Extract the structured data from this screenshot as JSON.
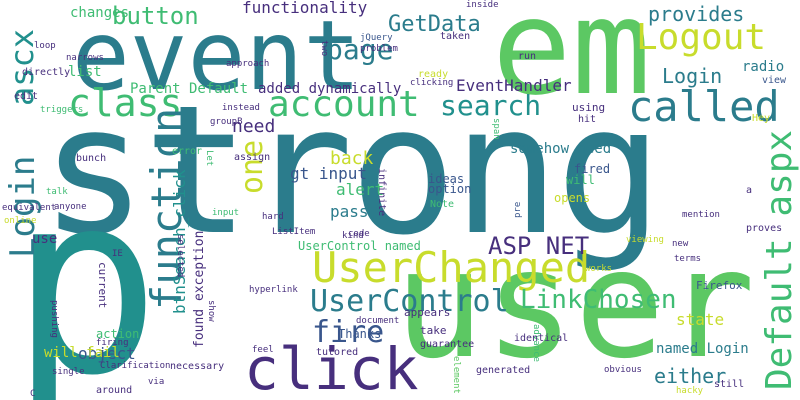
{
  "colors": {
    "background": "#ffffff",
    "teal": "#2b7c8c",
    "green": "#5cc863",
    "lime": "#c8dc2c",
    "navy": "#39568c",
    "purple": "#472f7d",
    "blue": "#31688e",
    "mint": "#3fbc73",
    "cyan": "#21908d"
  },
  "words": [
    "strong",
    "p",
    "user",
    "em",
    "event",
    "click",
    "UserChanged",
    "account",
    "class",
    "called",
    "Login",
    "ascx",
    "function",
    "Default aspx",
    "Logout",
    "page",
    "UserControl",
    "search",
    "LinkChosen",
    "fire",
    "ASP NET",
    "button",
    "functionality",
    "changes",
    "GetData",
    "provides",
    "one",
    "Login",
    "either",
    "alert",
    "need",
    "back",
    "gt input",
    "pass",
    "state",
    "EventHandler",
    "added dynamically",
    "Parent Default",
    "list",
    "radio",
    "object",
    "will fail",
    "use",
    "btnSearch_click",
    "found exception",
    "named Login",
    "somehow need",
    "ideas",
    "option",
    "UserControl named",
    "Thanks",
    "action",
    "take",
    "Firefox",
    "opens",
    "fired",
    "will",
    "hit",
    "using",
    "view",
    "Hey",
    "jQuery",
    "problem",
    "taken",
    "run",
    "inside",
    "groups",
    "loop",
    "two",
    "narrows",
    "directly",
    "edit",
    "triggers",
    "approach",
    "groupB",
    "instead",
    "ready",
    "clicking",
    "bunch",
    "error",
    "assign",
    "talk",
    "equivalent",
    "anyone",
    "online",
    "input",
    "hard",
    "ListItem",
    "code",
    "IE",
    "groupA",
    "way",
    "time",
    "trying",
    "suggestions",
    "try",
    "current",
    "selected",
    "hyperlink",
    "show",
    "pushing",
    "firing",
    "Clarification",
    "single",
    "C",
    "around",
    "via",
    "necessary",
    "element",
    "feel",
    "tutored",
    "advance",
    "document",
    "appears",
    "kind",
    "guarantee",
    "generated",
    "identical",
    "works",
    "pre",
    "obvious",
    "hacky",
    "still",
    "span",
    "infinite",
    "Let",
    "viewing",
    "terms",
    "new",
    "mention",
    "proves",
    "a",
    "Note"
  ]
}
